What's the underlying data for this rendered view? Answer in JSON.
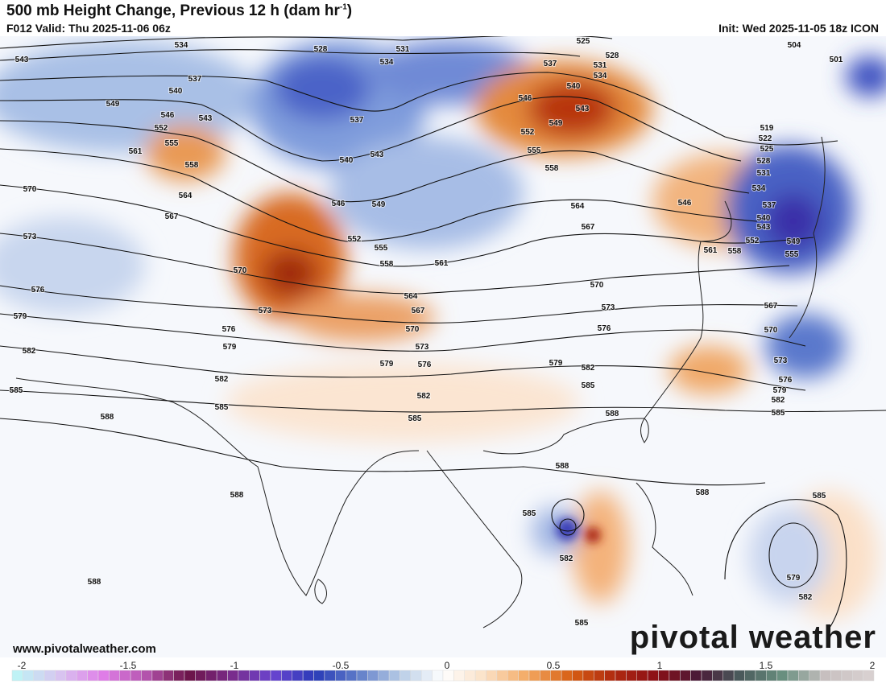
{
  "header": {
    "title": "500 mb Height Change, Previous 12 h (dam hr",
    "title_sup": "-1",
    "title_close": ")",
    "valid": "F012 Valid: Thu 2025-11-06 06z",
    "init": "Init: Wed 2025-11-05 18z ICON"
  },
  "footer": {
    "url": "www.pivotalweather.com",
    "brand": "pivotal weather"
  },
  "colorbar": {
    "ticks": [
      "-2",
      "-1.5",
      "-1",
      "-0.5",
      "0",
      "0.5",
      "1",
      "1.5",
      "2"
    ],
    "range": [
      -2,
      2
    ],
    "anchors": [
      "#bff2f5",
      "#d8c4f0",
      "#e07ee8",
      "#b655b0",
      "#6b1448",
      "#7a2a88",
      "#6a45d0",
      "#2a3cb8",
      "#5e7cc8",
      "#b8cce6",
      "#ffffff",
      "#fbe0c4",
      "#f3a861",
      "#d86014",
      "#b02a10",
      "#8c0f16",
      "#4a1a38",
      "#4a5c5c",
      "#6a9080",
      "#c8c0c0",
      "#d8d0d0"
    ]
  },
  "contour_labels": [
    "534",
    "528",
    "531",
    "534",
    "525",
    "528",
    "537",
    "531",
    "534",
    "504",
    "501",
    "543",
    "537",
    "540",
    "549",
    "546",
    "543",
    "552",
    "555",
    "558",
    "561",
    "537",
    "540",
    "543",
    "546",
    "540",
    "543",
    "549",
    "552",
    "555",
    "558",
    "519",
    "522",
    "525",
    "528",
    "531",
    "534",
    "537",
    "540",
    "543",
    "549",
    "552",
    "555",
    "546",
    "561",
    "558",
    "570",
    "564",
    "567",
    "546",
    "549",
    "552",
    "555",
    "558",
    "561",
    "564",
    "567",
    "573",
    "576",
    "579",
    "570",
    "573",
    "564",
    "567",
    "570",
    "573",
    "576",
    "570",
    "573",
    "576",
    "567",
    "570",
    "573",
    "576",
    "579",
    "582",
    "585",
    "579",
    "576",
    "582",
    "582",
    "585",
    "585",
    "588",
    "579",
    "582",
    "585",
    "579",
    "582",
    "585",
    "588",
    "588",
    "588",
    "588",
    "588",
    "585",
    "582",
    "585",
    "585",
    "579",
    "582"
  ]
}
